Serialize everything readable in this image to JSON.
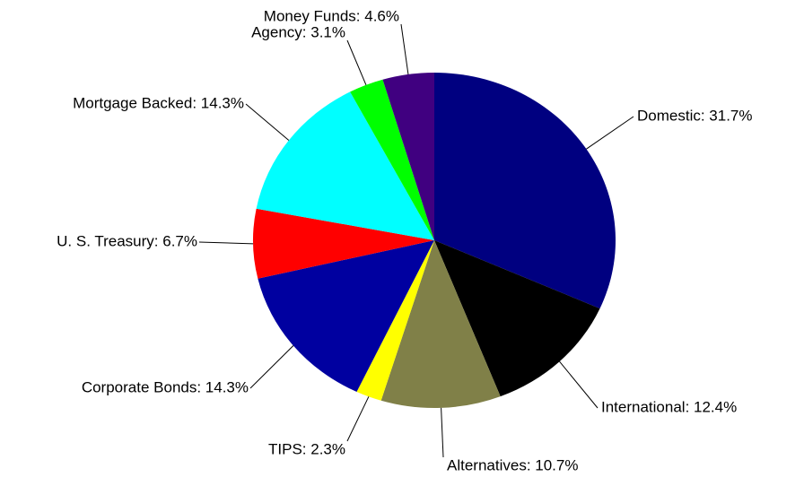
{
  "chart_data": {
    "type": "pie",
    "categories": [
      "Domestic",
      "International",
      "Alternatives",
      "TIPS",
      "Corporate Bonds",
      "U. S. Treasury",
      "Mortgage Backed",
      "Agency",
      "Money Funds"
    ],
    "values": [
      31.7,
      12.4,
      10.7,
      2.3,
      14.3,
      6.7,
      14.3,
      3.1,
      4.6
    ],
    "value_labels": [
      "Domestic: 31.7%",
      "International: 12.4%",
      "Alternatives: 10.7%",
      "TIPS: 2.3%",
      "Corporate Bonds: 14.3%",
      "U. S. Treasury: 6.7%",
      "Mortgage Backed: 14.3%",
      "Agency: 3.1%",
      "Money Funds: 4.6%"
    ],
    "colors": [
      "#000080",
      "#000000",
      "#808048",
      "#ffff00",
      "#0000a0",
      "#ff0000",
      "#00ffff",
      "#00ff00",
      "#400080"
    ]
  }
}
